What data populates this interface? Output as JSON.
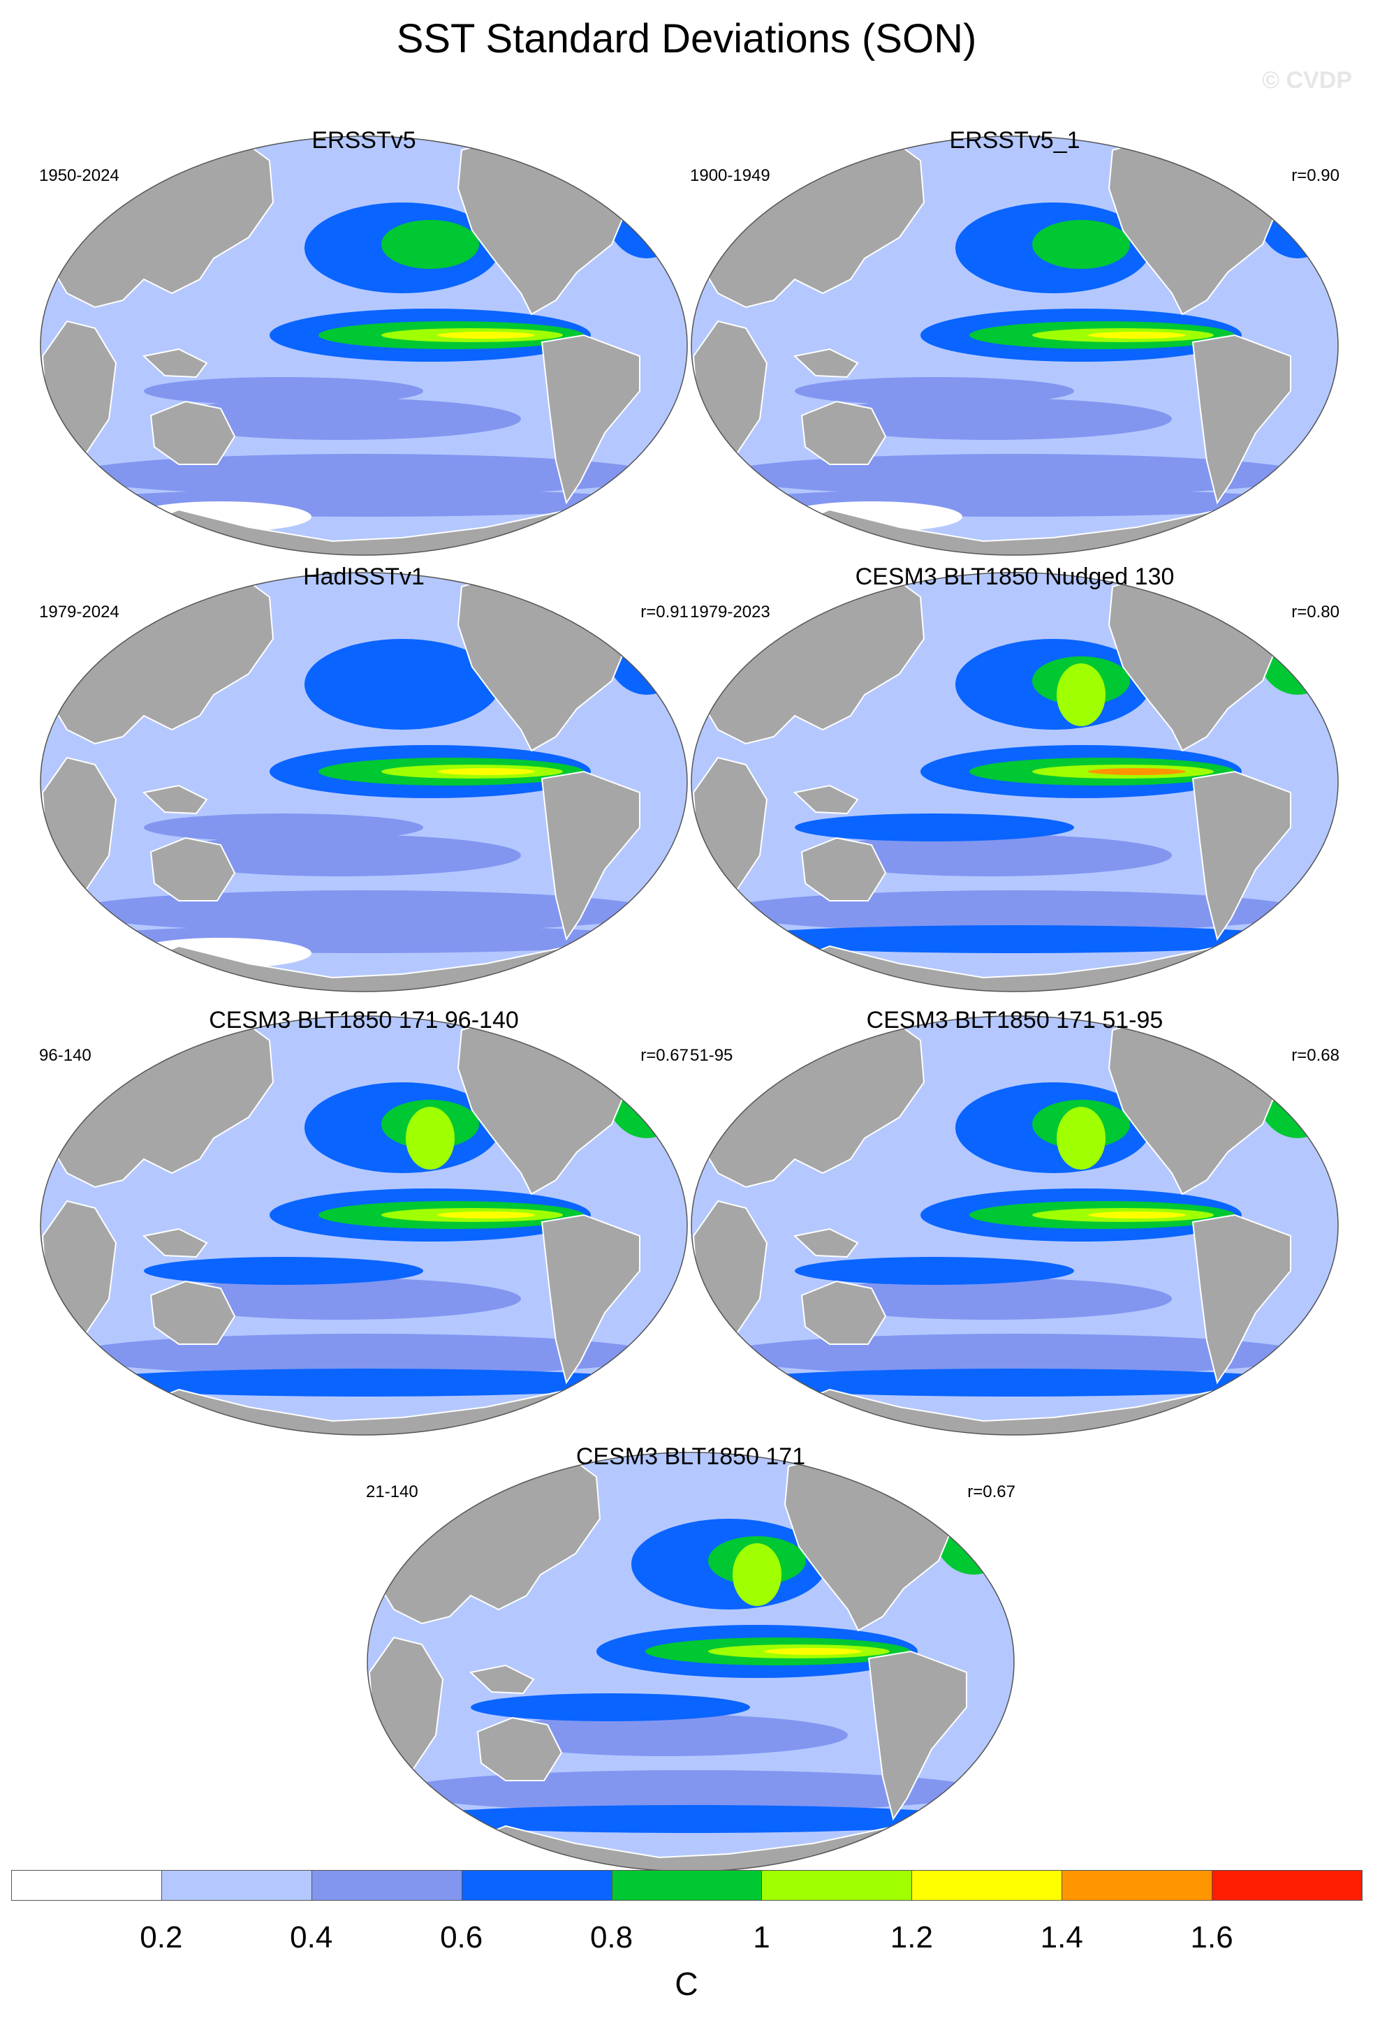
{
  "title": "SST Standard Deviations (SON)",
  "watermark": "© CVDP",
  "colors": {
    "ocean_levels": [
      "#ffffff",
      "#b4c8ff",
      "#8296f0",
      "#0a64ff",
      "#00c832",
      "#a0ff00",
      "#ffff00",
      "#ff9600",
      "#ff1e00"
    ],
    "land": "#a6a6a6"
  },
  "panels": [
    {
      "title": "ERSSTv5",
      "period": "1950-2024",
      "corr": "",
      "intensity": "low"
    },
    {
      "title": "ERSSTv5_1",
      "period": "1900-1949",
      "corr": "r=0.90",
      "intensity": "low"
    },
    {
      "title": "HadISSTv1",
      "period": "1979-2024",
      "corr": "r=0.91",
      "intensity": "lowest"
    },
    {
      "title": "CESM3 BLT1850 Nudged 130",
      "period": "1979-2023",
      "corr": "r=0.80",
      "intensity": "high"
    },
    {
      "title": "CESM3 BLT1850 171 96-140",
      "period": "96-140",
      "corr": "r=0.67",
      "intensity": "mid"
    },
    {
      "title": "CESM3 BLT1850 171 51-95",
      "period": "51-95",
      "corr": "r=0.68",
      "intensity": "mid"
    },
    {
      "title": "CESM3 BLT1850 171",
      "period": "21-140",
      "corr": "r=0.67",
      "intensity": "mid"
    }
  ],
  "colorbar": {
    "labels": [
      "0.2",
      "0.4",
      "0.6",
      "0.8",
      "1",
      "1.2",
      "1.4",
      "1.6"
    ],
    "unit": "C"
  }
}
